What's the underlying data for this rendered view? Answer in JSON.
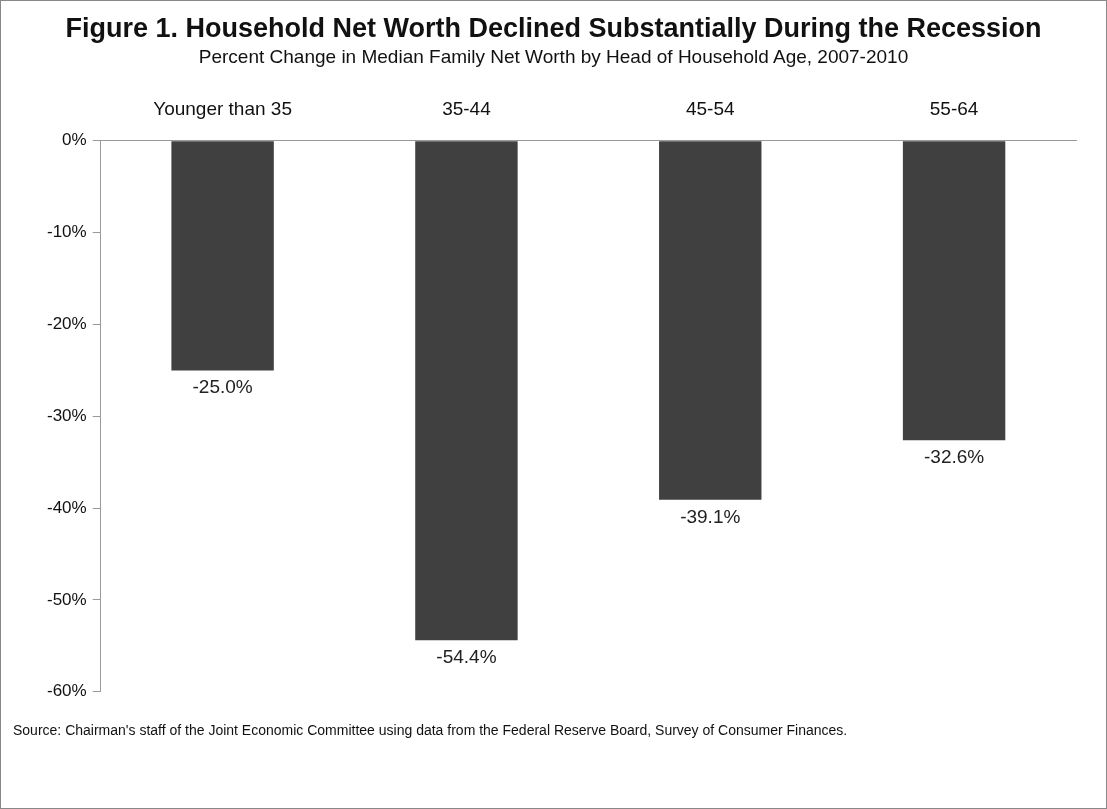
{
  "chart_data": {
    "type": "bar",
    "title": "Figure 1. Household Net Worth Declined Substantially During the Recession",
    "subtitle": "Percent Change in Median Family Net Worth by Head of Household Age, 2007-2010",
    "categories": [
      "Younger than 35",
      "35-44",
      "45-54",
      "55-64"
    ],
    "values": [
      -25.0,
      -54.4,
      -39.1,
      -32.6
    ],
    "color": "#404040",
    "value_labels": [
      "-25.0%",
      "-54.4%",
      "-39.1%",
      "-32.6%"
    ],
    "ylim": [
      -60,
      0
    ],
    "yticks": [
      {
        "value": -60,
        "label": "-60%"
      },
      {
        "value": -50,
        "label": "-50%"
      },
      {
        "value": -40,
        "label": "-40%"
      },
      {
        "value": -30,
        "label": "-30%"
      },
      {
        "value": -20,
        "label": "-20%"
      },
      {
        "value": -10,
        "label": "-10%"
      },
      {
        "value": 0,
        "label": "0%"
      }
    ],
    "grid": false,
    "legend": false,
    "annotations": [
      "Source: Chairman's staff of the Joint Economic Committee using data from the Federal Reserve Board, Survey of Consumer Finances."
    ]
  }
}
